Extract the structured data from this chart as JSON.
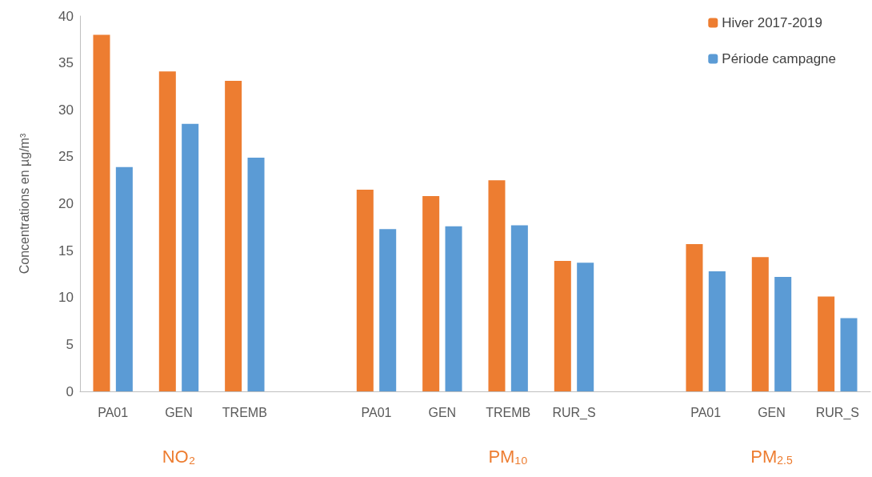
{
  "chart_data": {
    "type": "bar",
    "ylabel": "Concentrations en µg/m³",
    "categories": [
      "PA01",
      "GEN",
      "TREMB",
      null,
      "PA01",
      "GEN",
      "TREMB",
      "RUR_S",
      null,
      "PA01",
      "GEN",
      "RUR_S"
    ],
    "series": [
      {
        "name": "Hiver 2017-2019",
        "color": "#ed7d31",
        "values": [
          38.0,
          34.1,
          33.1,
          null,
          21.5,
          20.8,
          22.5,
          13.9,
          null,
          15.7,
          14.3,
          10.1
        ]
      },
      {
        "name": "Période campagne",
        "color": "#5b9bd5",
        "values": [
          23.9,
          28.5,
          24.9,
          null,
          17.3,
          17.6,
          17.7,
          13.7,
          null,
          12.8,
          12.2,
          7.8
        ]
      }
    ],
    "ylim": [
      0,
      40
    ],
    "yticks": [
      0,
      5,
      10,
      15,
      20,
      25,
      30,
      35,
      40
    ],
    "grid": false,
    "legend": "top right",
    "annotations": [
      "NO₂",
      "PM₁₀",
      "PM$_{2.5}$"
    ]
  }
}
